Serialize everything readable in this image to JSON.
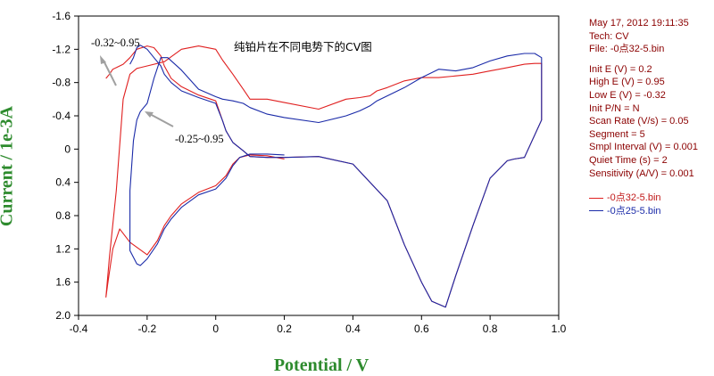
{
  "chart_data": {
    "type": "line",
    "title": "纯铂片在不同电势下的CV图",
    "xlabel": "Potential / V",
    "ylabel": "Current / 1e-3A",
    "xlim": [
      -0.4,
      1.0
    ],
    "ylim": [
      -1.6,
      2.0
    ],
    "y_axis_inverted": true,
    "xticks": [
      "-0.4",
      "-0.2",
      "0",
      "0.2",
      "0.4",
      "0.6",
      "0.8",
      "1.0"
    ],
    "yticks": [
      "-1.6",
      "-1.2",
      "-0.8",
      "-0.4",
      "0",
      "0.4",
      "0.8",
      "1.2",
      "1.6",
      "2.0"
    ],
    "grid": false,
    "legend_position": "right",
    "annotations": [
      "-0.32~0.95",
      "-0.25~0.95"
    ],
    "series": [
      {
        "name": "-0点32-5.bin",
        "color": "#e02020",
        "x": [
          0.2,
          0.15,
          0.1,
          0.07,
          0.05,
          0.03,
          0.0,
          -0.05,
          -0.1,
          -0.13,
          -0.15,
          -0.17,
          -0.2,
          -0.25,
          -0.28,
          -0.3,
          -0.315,
          -0.32,
          -0.31,
          -0.29,
          -0.27,
          -0.25,
          -0.23,
          -0.22,
          -0.2,
          -0.15,
          -0.1,
          -0.05,
          0.0,
          0.02,
          0.05,
          0.08,
          0.1,
          0.15,
          0.2,
          0.3,
          0.38,
          0.42,
          0.45,
          0.47,
          0.5,
          0.55,
          0.6,
          0.65,
          0.7,
          0.75,
          0.8,
          0.85,
          0.9,
          0.93,
          0.95,
          0.95,
          0.9,
          0.87,
          0.85,
          0.8,
          0.75,
          0.7,
          0.67,
          0.63,
          0.6,
          0.55,
          0.5,
          0.4,
          0.3,
          0.2,
          0.15,
          0.1,
          0.08,
          0.05,
          0.03,
          0.02,
          0.0,
          -0.05,
          -0.1,
          -0.13,
          -0.15,
          -0.16,
          -0.18,
          -0.2,
          -0.23,
          -0.25,
          -0.27,
          -0.29,
          -0.3,
          -0.31,
          -0.32
        ],
        "y": [
          0.12,
          0.08,
          0.07,
          0.1,
          0.18,
          0.32,
          0.44,
          0.52,
          0.66,
          0.8,
          0.92,
          1.1,
          1.27,
          1.12,
          0.96,
          1.2,
          1.62,
          1.78,
          1.3,
          0.5,
          -0.6,
          -0.9,
          -0.97,
          -0.98,
          -1.0,
          -1.05,
          -1.2,
          -1.24,
          -1.2,
          -1.07,
          -0.9,
          -0.72,
          -0.6,
          -0.6,
          -0.56,
          -0.48,
          -0.6,
          -0.62,
          -0.64,
          -0.7,
          -0.74,
          -0.82,
          -0.86,
          -0.86,
          -0.88,
          -0.9,
          -0.94,
          -0.98,
          -1.02,
          -1.03,
          -1.03,
          -0.35,
          0.1,
          0.12,
          0.14,
          0.35,
          0.92,
          1.52,
          1.9,
          1.83,
          1.6,
          1.15,
          0.62,
          0.18,
          0.09,
          0.1,
          0.1,
          0.09,
          0.02,
          -0.08,
          -0.22,
          -0.34,
          -0.58,
          -0.65,
          -0.75,
          -0.85,
          -1.0,
          -1.12,
          -1.22,
          -1.24,
          -1.2,
          -1.1,
          -1.02,
          -0.98,
          -0.96,
          -0.9,
          -0.85
        ]
      },
      {
        "name": "-0点25-5.bin",
        "color": "#1a2aa8",
        "x": [
          0.2,
          0.15,
          0.1,
          0.07,
          0.05,
          0.03,
          0.0,
          -0.05,
          -0.1,
          -0.13,
          -0.15,
          -0.17,
          -0.2,
          -0.22,
          -0.23,
          -0.24,
          -0.25,
          -0.25,
          -0.24,
          -0.23,
          -0.22,
          -0.2,
          -0.18,
          -0.16,
          -0.14,
          -0.1,
          -0.05,
          0.0,
          0.02,
          0.05,
          0.08,
          0.1,
          0.15,
          0.2,
          0.3,
          0.38,
          0.42,
          0.45,
          0.47,
          0.5,
          0.55,
          0.6,
          0.65,
          0.7,
          0.75,
          0.8,
          0.85,
          0.9,
          0.93,
          0.95,
          0.95,
          0.9,
          0.87,
          0.85,
          0.8,
          0.75,
          0.7,
          0.67,
          0.63,
          0.6,
          0.55,
          0.5,
          0.4,
          0.3,
          0.2,
          0.15,
          0.1,
          0.08,
          0.05,
          0.03,
          0.02,
          0.0,
          -0.05,
          -0.1,
          -0.13,
          -0.15,
          -0.16,
          -0.18,
          -0.2,
          -0.22,
          -0.23,
          -0.24,
          -0.25
        ],
        "y": [
          0.07,
          0.06,
          0.06,
          0.1,
          0.2,
          0.35,
          0.48,
          0.55,
          0.7,
          0.84,
          0.96,
          1.14,
          1.32,
          1.4,
          1.38,
          1.3,
          1.22,
          0.5,
          -0.1,
          -0.35,
          -0.45,
          -0.55,
          -0.85,
          -1.1,
          -1.1,
          -0.95,
          -0.72,
          -0.63,
          -0.6,
          -0.58,
          -0.55,
          -0.5,
          -0.42,
          -0.38,
          -0.32,
          -0.4,
          -0.46,
          -0.52,
          -0.58,
          -0.64,
          -0.74,
          -0.86,
          -0.96,
          -0.94,
          -0.98,
          -1.06,
          -1.12,
          -1.15,
          -1.15,
          -1.1,
          -0.35,
          0.1,
          0.12,
          0.14,
          0.35,
          0.92,
          1.52,
          1.9,
          1.83,
          1.6,
          1.15,
          0.62,
          0.18,
          0.09,
          0.1,
          0.1,
          0.09,
          0.02,
          -0.08,
          -0.22,
          -0.34,
          -0.55,
          -0.62,
          -0.7,
          -0.8,
          -0.9,
          -1.0,
          -1.1,
          -1.2,
          -1.25,
          -1.22,
          -1.1,
          -1.02
        ]
      }
    ]
  },
  "info": {
    "lines": [
      "May 17, 2012   19:11:35",
      "Tech: CV",
      "File: -0点32-5.bin",
      "",
      "Init E (V) = 0.2",
      "High E (V) = 0.95",
      "Low E (V) = -0.32",
      "Init P/N = N",
      "Scan Rate (V/s) = 0.05",
      "Segment = 5",
      "Smpl Interval (V) = 0.001",
      "Quiet Time (s) = 2",
      "Sensitivity (A/V) = 0.001"
    ]
  }
}
